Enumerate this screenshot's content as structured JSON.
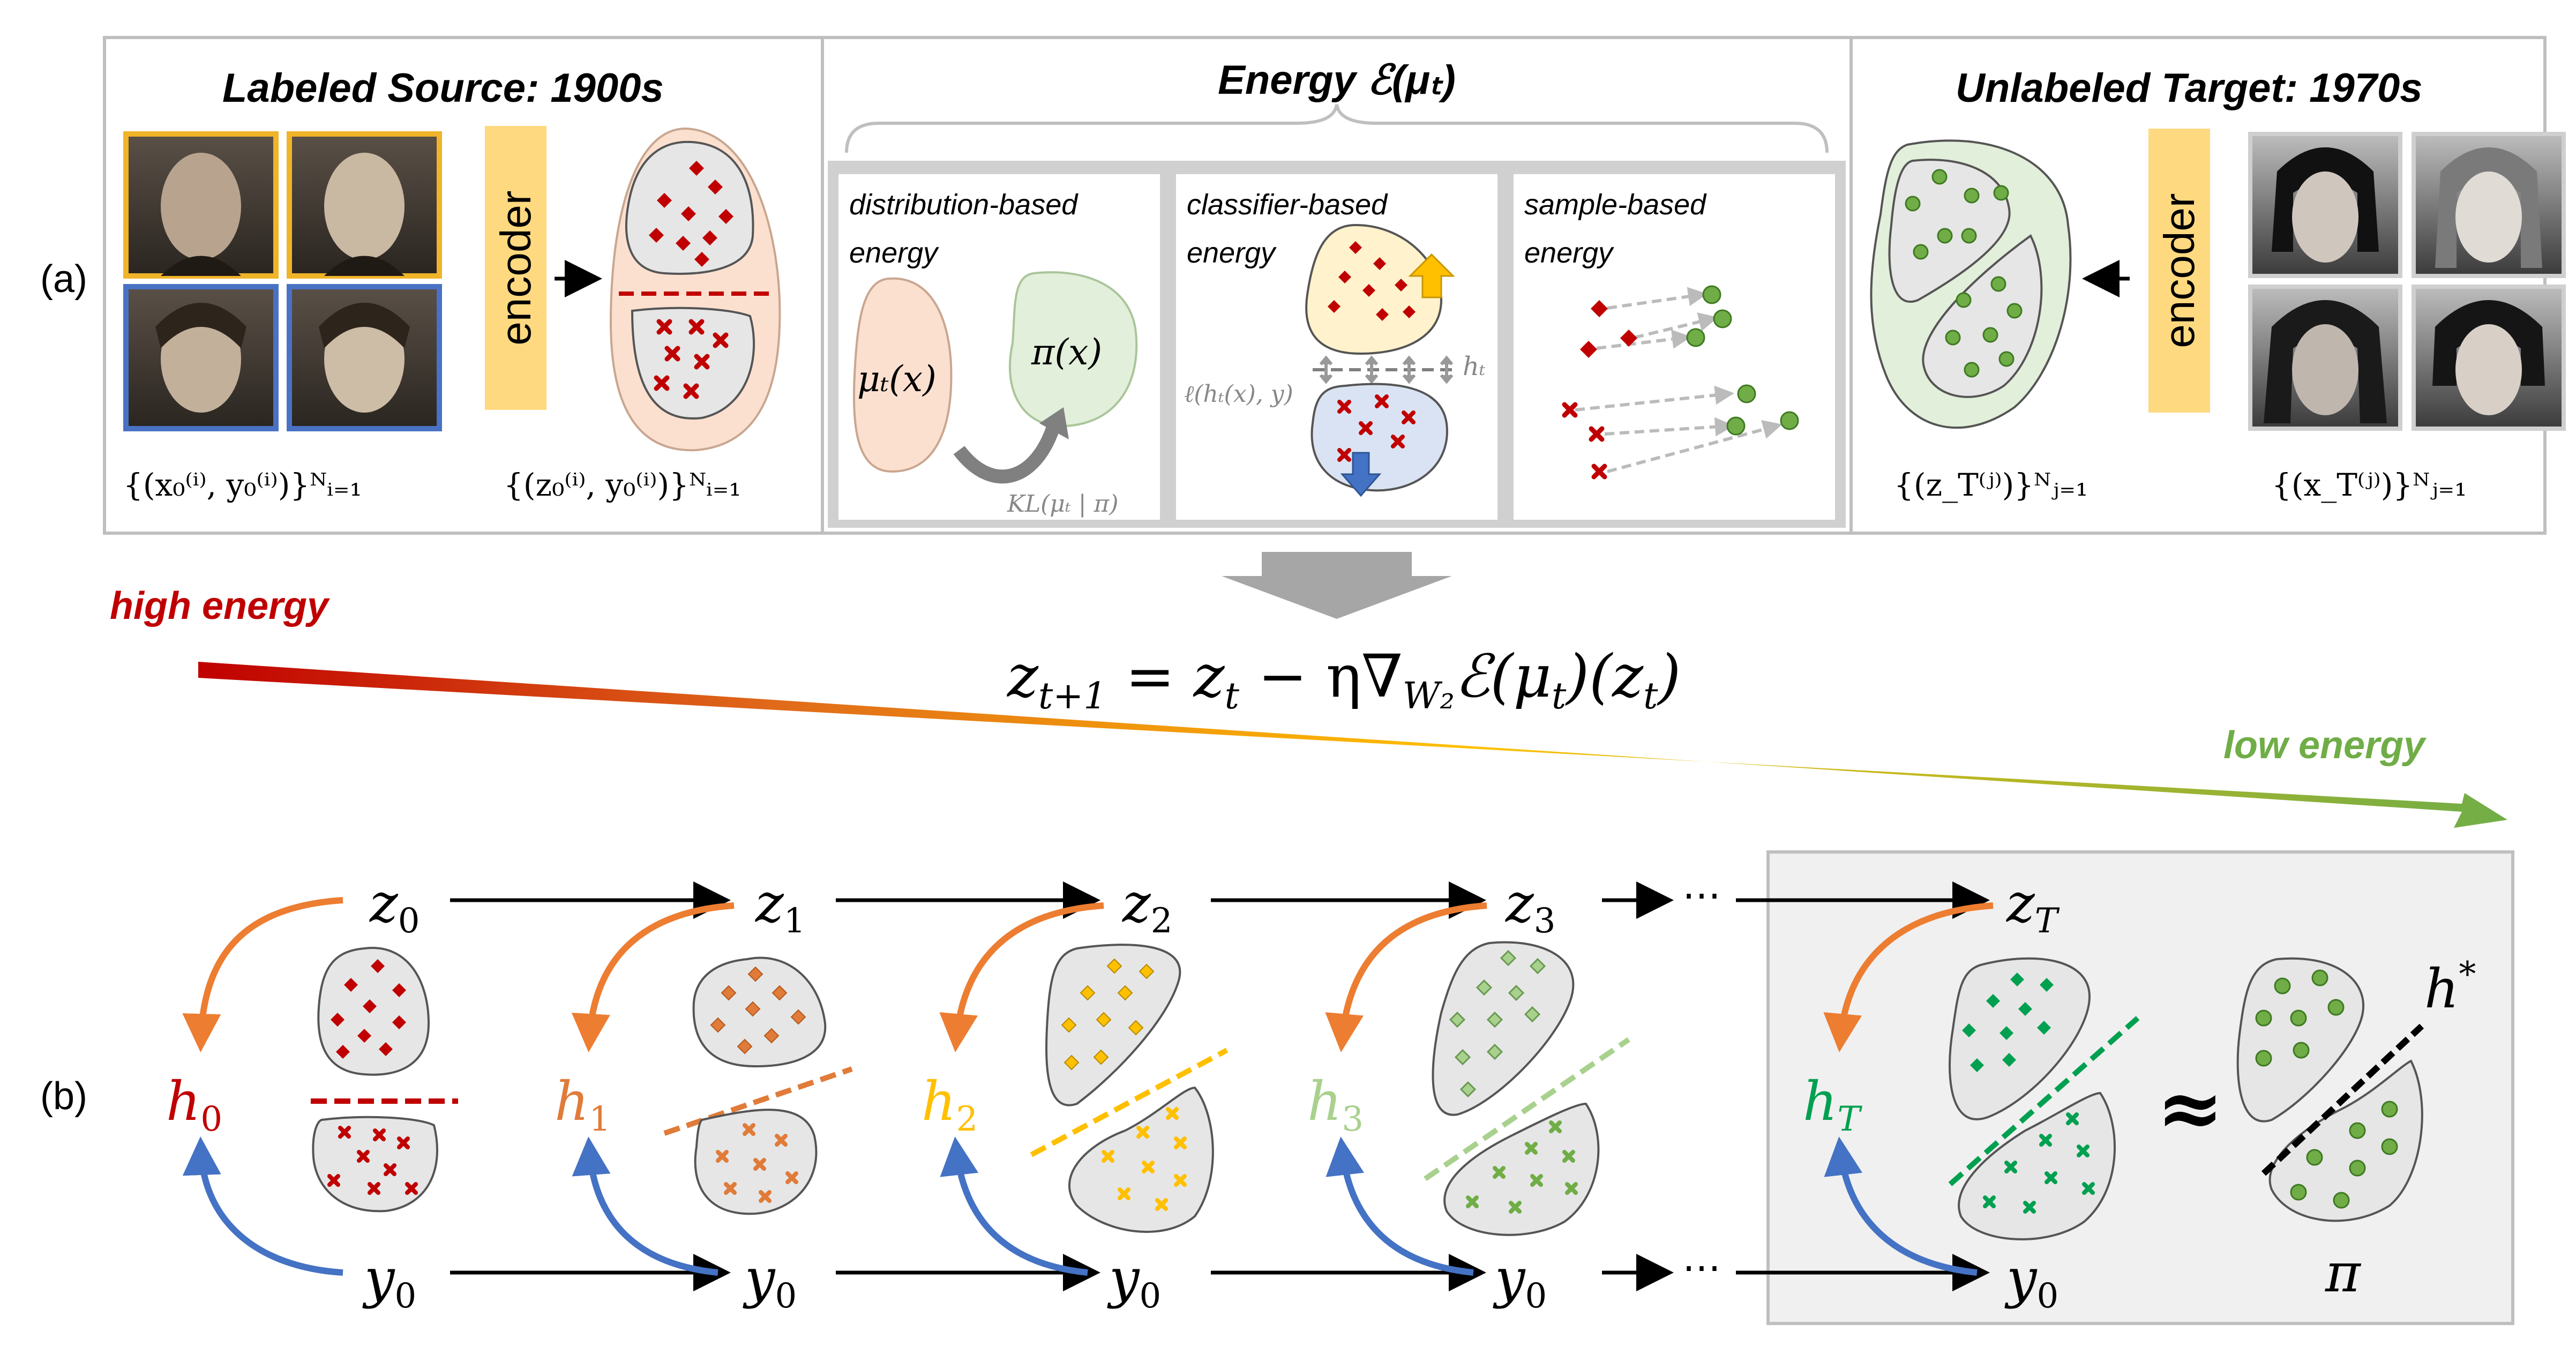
{
  "panel_labels": {
    "a": "(a)",
    "b": "(b)"
  },
  "panel_a": {
    "source": {
      "title": "Labeled Source: 1900s",
      "encoder_label": "encoder",
      "images_caption": "{(x₀⁽ⁱ⁾, y₀⁽ⁱ⁾)}ᴺᵢ₌₁",
      "features_caption": "{(z₀⁽ⁱ⁾, y₀⁽ⁱ⁾)}ᴺᵢ₌₁"
    },
    "energy": {
      "title": "Energy ℰ(μₜ)",
      "distribution": {
        "label_line1": "distribution-based",
        "label_line2": "energy",
        "mu_label": "μₜ(x)",
        "pi_label": "π(x)",
        "kl_label": "KL(μₜ | π)"
      },
      "classifier": {
        "label_line1": "classifier-based",
        "label_line2": "energy",
        "h_label": "hₜ",
        "loss_label": "ℓ(hₜ(x), y)"
      },
      "sample": {
        "label_line1": "sample-based",
        "label_line2": "energy"
      }
    },
    "target": {
      "title": "Unlabeled Target: 1970s",
      "encoder_label": "encoder",
      "features_caption": "{(z_T⁽ʲ⁾)}ᴺⱼ₌₁",
      "images_caption": "{(x_T⁽ʲ⁾)}ᴺⱼ₌₁"
    },
    "photo_border_colors": {
      "class_a": "#f0b429",
      "class_b": "#4a72c4"
    }
  },
  "update_rule": "z_{t+1} = z_t − η∇_{W₂}ℰ(μ_t)(z_t)",
  "update_rule_display": {
    "lhs": "z",
    "lhs_sub": "t+1",
    "eq": " = ",
    "z": "z",
    "z_sub": "t",
    "minus_eta": " − η∇",
    "w_sub": "W₂",
    "energy": "ℰ(μ",
    "mu_sub": "t",
    "close": ")(z",
    "z2_sub": "t",
    "end": ")"
  },
  "energy_gradient": {
    "high_label": "high energy",
    "low_label": "low energy",
    "colors": [
      "#c00000",
      "#e06a1a",
      "#ffc000",
      "#70ad47"
    ]
  },
  "panel_b": {
    "stages": [
      {
        "z": "z",
        "z_sub": "0",
        "h": "h",
        "h_sub": "0",
        "y": "y",
        "y_sub": "0",
        "color": "#c00000"
      },
      {
        "z": "z",
        "z_sub": "1",
        "h": "h",
        "h_sub": "1",
        "y": "y",
        "y_sub": "0",
        "color": "#e07b39"
      },
      {
        "z": "z",
        "z_sub": "2",
        "h": "h",
        "h_sub": "2",
        "y": "y",
        "y_sub": "0",
        "color": "#ffc000"
      },
      {
        "z": "z",
        "z_sub": "3",
        "h": "h",
        "h_sub": "3",
        "y": "y",
        "y_sub": "0",
        "color": "#a9d18e"
      },
      {
        "z": "z",
        "z_sub": "T",
        "h": "h",
        "h_sub": "T",
        "y": "y",
        "y_sub": "0",
        "color": "#00a050"
      }
    ],
    "ellipsis": "⋯",
    "approx": "≈",
    "h_star": "h",
    "h_star_sup": "*",
    "pi": "π",
    "arrow_colors": {
      "z_to_h": "#ed7d31",
      "y_to_h": "#4472c4"
    }
  }
}
